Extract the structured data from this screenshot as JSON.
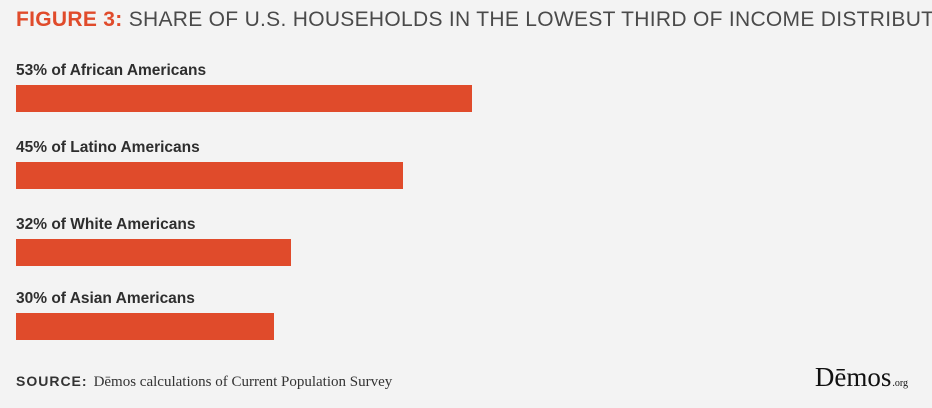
{
  "title": {
    "figure": "FIGURE 3:",
    "text": "SHARE OF U.S. HOUSEHOLDS IN THE LOWEST THIRD OF INCOME DISTRIBUTION"
  },
  "source": {
    "label": "SOURCE:",
    "text": "Dēmos calculations of Current Population Survey"
  },
  "logo": {
    "word": "Dēmos",
    "org": ".org"
  },
  "colors": {
    "bar": "#e04b2b",
    "figure": "#e04b2b",
    "title": "#4a4a4a",
    "background": "#f3f3f3"
  },
  "chart_data": {
    "type": "bar",
    "orientation": "horizontal",
    "title": "SHARE OF U.S. HOUSEHOLDS IN THE LOWEST THIRD OF INCOME DISTRIBUTION",
    "categories": [
      "53% of African Americans",
      "45% of Latino Americans",
      "32% of White Americans",
      "30% of Asian Americans"
    ],
    "values": [
      53,
      45,
      32,
      30
    ],
    "unit": "%",
    "xlim": [
      0,
      100
    ],
    "grid": false,
    "legend": "none"
  }
}
